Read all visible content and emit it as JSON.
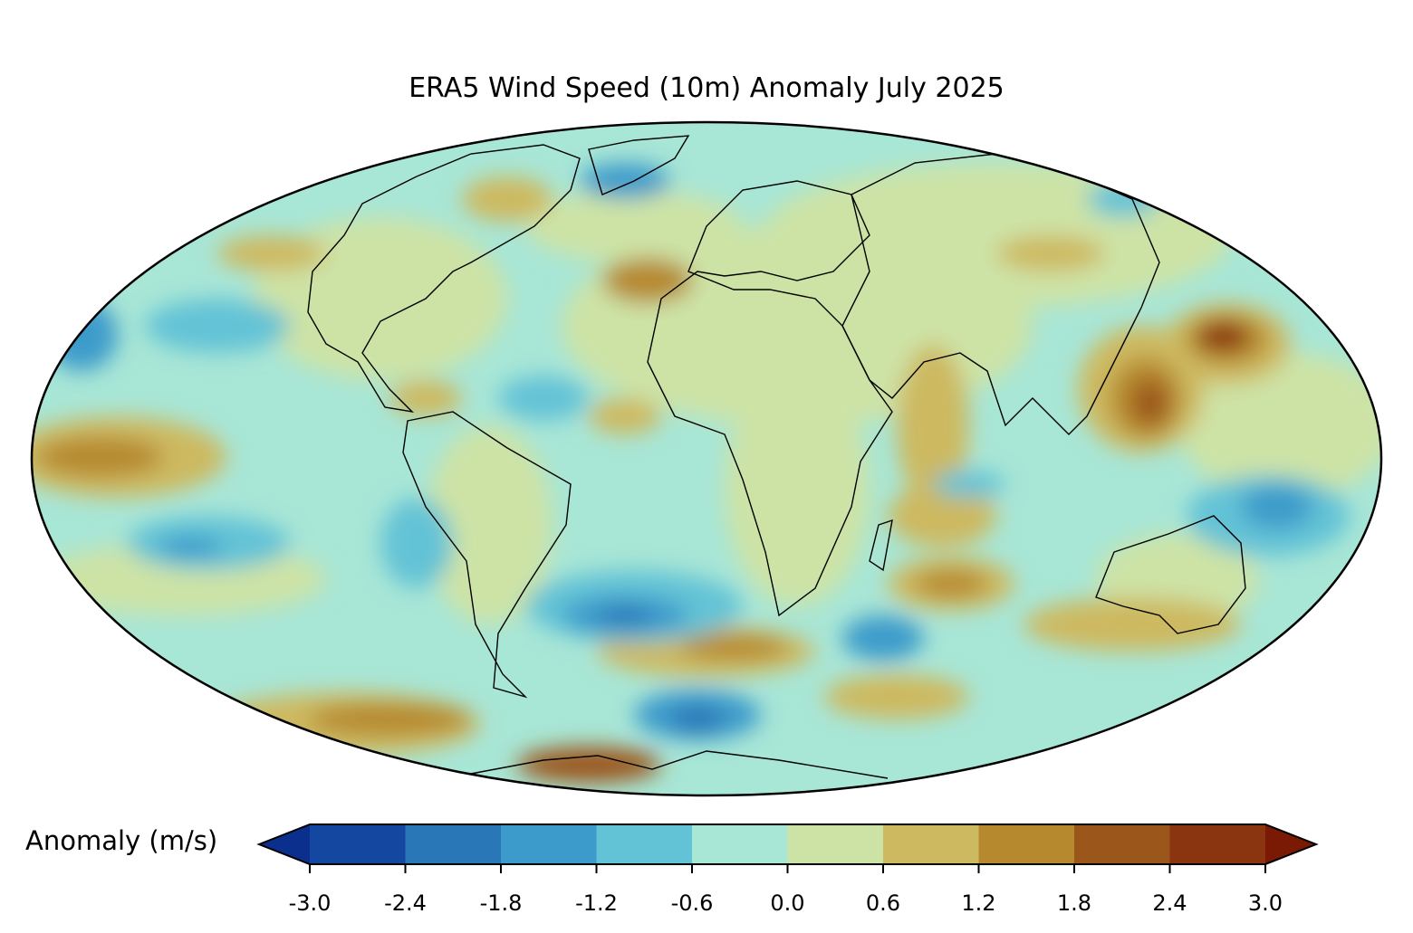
{
  "title": "ERA5 Wind Speed (10m) Anomaly July 2025",
  "colorbar": {
    "label": "Anomaly (m/s)",
    "ticks": [
      "-3.0",
      "-2.4",
      "-1.8",
      "-1.2",
      "-0.6",
      "0.0",
      "0.6",
      "1.2",
      "1.8",
      "2.4",
      "3.0"
    ],
    "levels": [
      -3.0,
      -2.4,
      -1.8,
      -1.2,
      -0.6,
      0.0,
      0.6,
      1.2,
      1.8,
      2.4,
      3.0
    ],
    "colors": [
      "#1447a0",
      "#2a77b8",
      "#3d9bcb",
      "#63c3d6",
      "#a8e6d6",
      "#cde3a6",
      "#cdb960",
      "#b6892f",
      "#9b561c",
      "#8a3410"
    ],
    "under_color": "#0b2f8c",
    "over_color": "#7a1a04",
    "extend": "both"
  },
  "map": {
    "projection": "Mollweide",
    "variable": "10m wind speed anomaly",
    "units": "m/s"
  }
}
